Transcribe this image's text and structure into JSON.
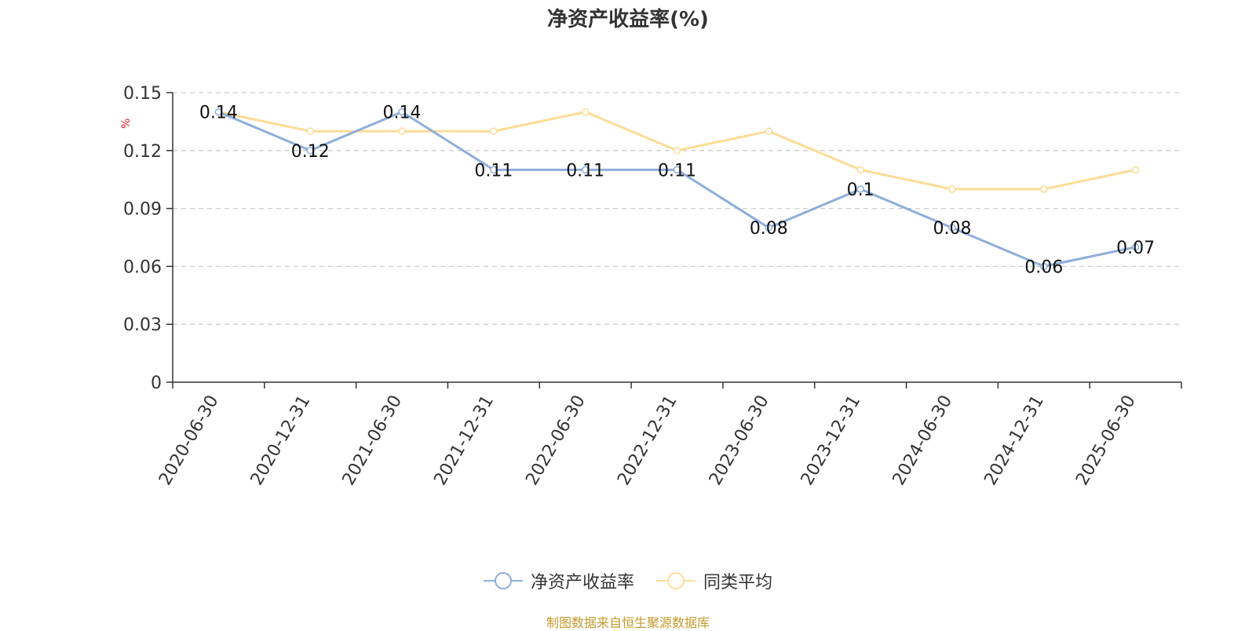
{
  "colors": {
    "series1": "#8eaedb",
    "series2": "#fcdc97",
    "source": "#c49a2c",
    "unit": "#e02020"
  },
  "chart_data": {
    "type": "line",
    "title": "净资产收益率(%)",
    "ylabel": "%",
    "ylim": [
      0,
      0.15
    ],
    "yticks": [
      "0",
      "0.03",
      "0.06",
      "0.09",
      "0.12",
      "0.15"
    ],
    "grid": true,
    "legend_position": "bottom",
    "x": [
      "2020-06-30",
      "2020-12-31",
      "2021-06-30",
      "2021-12-31",
      "2022-06-30",
      "2022-12-31",
      "2023-06-30",
      "2023-12-31",
      "2024-06-30",
      "2024-12-31",
      "2025-06-30"
    ],
    "series": [
      {
        "name": "净资产收益率",
        "values": [
          0.14,
          0.12,
          0.14,
          0.11,
          0.11,
          0.11,
          0.08,
          0.1,
          0.08,
          0.06,
          0.07
        ],
        "labels": [
          "0.14",
          "0.12",
          "0.14",
          "0.11",
          "0.11",
          "0.11",
          "0.08",
          "0.1",
          "0.08",
          "0.06",
          "0.07"
        ]
      },
      {
        "name": "同类平均",
        "values": [
          0.14,
          0.13,
          0.13,
          0.13,
          0.14,
          0.12,
          0.13,
          0.11,
          0.1,
          0.1,
          0.11
        ]
      }
    ],
    "source": "制图数据来自恒生聚源数据库"
  }
}
